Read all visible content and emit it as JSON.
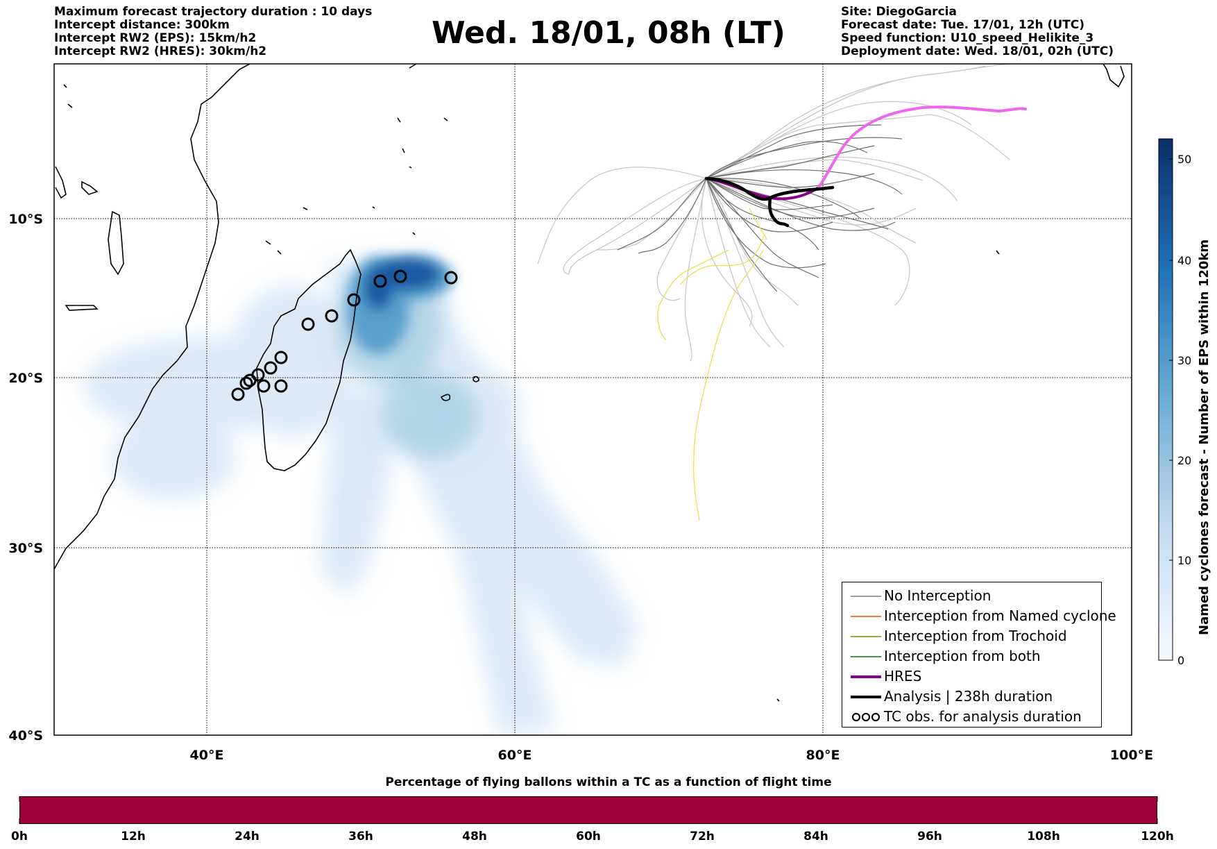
{
  "header": {
    "left_lines": [
      "Maximum forecast trajectory duration : 10 days",
      "Intercept distance: 300km",
      "Intercept RW2 (EPS):  15km/h2",
      "Intercept RW2 (HRES): 30km/h2"
    ],
    "title": "Wed. 18/01, 08h (LT)",
    "right_lines": [
      "Site: DiegoGarcia",
      "Forecast date: Tue. 17/01, 12h (UTC)",
      "Speed function: U10_speed_Helikite_3",
      "Deployment date: Wed. 18/01, 02h (UTC)"
    ]
  },
  "map": {
    "lon_labels": [
      "40°E",
      "60°E",
      "80°E",
      "100°E"
    ],
    "lat_labels": [
      "10°S",
      "20°S",
      "30°S",
      "40°S"
    ],
    "extent": {
      "lon_min": 30,
      "lon_max": 100,
      "lat_min": -40,
      "lat_max": -1
    },
    "colors": {
      "no_interception": "#7f7f7f",
      "ensemble_light": "#c8c8c8",
      "hres": "#8b008b",
      "hres_continuation": "#ee66ee",
      "analysis": "#000000",
      "yellow_track": "#e8e050",
      "density_light": "#dbe9f6",
      "density_dark": "#08519c"
    }
  },
  "legend": {
    "items": [
      {
        "label": "No Interception",
        "color": "#7f7f7f",
        "width": 1
      },
      {
        "label": "Interception from Named cyclone",
        "color": "#ff4500",
        "width": 1
      },
      {
        "label": "Interception from Trochoid",
        "color": "#808000",
        "width": 1
      },
      {
        "label": "Interception from both",
        "color": "#008000",
        "width": 1
      },
      {
        "label": "HRES",
        "color": "#8b008b",
        "width": 4
      },
      {
        "label": "Analysis | 238h duration",
        "color": "#000000",
        "width": 4
      },
      {
        "label": "TC obs. for analysis duration",
        "color": "#000000",
        "width": 0,
        "symbol": "cyclone-icon"
      }
    ]
  },
  "colorbar": {
    "label": "Named cyclones forecast - Number of EPS within 120km",
    "ticks": [
      "0",
      "10",
      "20",
      "30",
      "40",
      "50"
    ],
    "color_low": "#f7fbff",
    "color_high": "#08306b"
  },
  "bottom": {
    "title": "Percentage of flying ballons within a TC as a function of flight time",
    "bar_color": "#9e003a",
    "ticks": [
      "0h",
      "12h",
      "24h",
      "36h",
      "48h",
      "60h",
      "72h",
      "84h",
      "96h",
      "108h",
      "120h"
    ]
  }
}
